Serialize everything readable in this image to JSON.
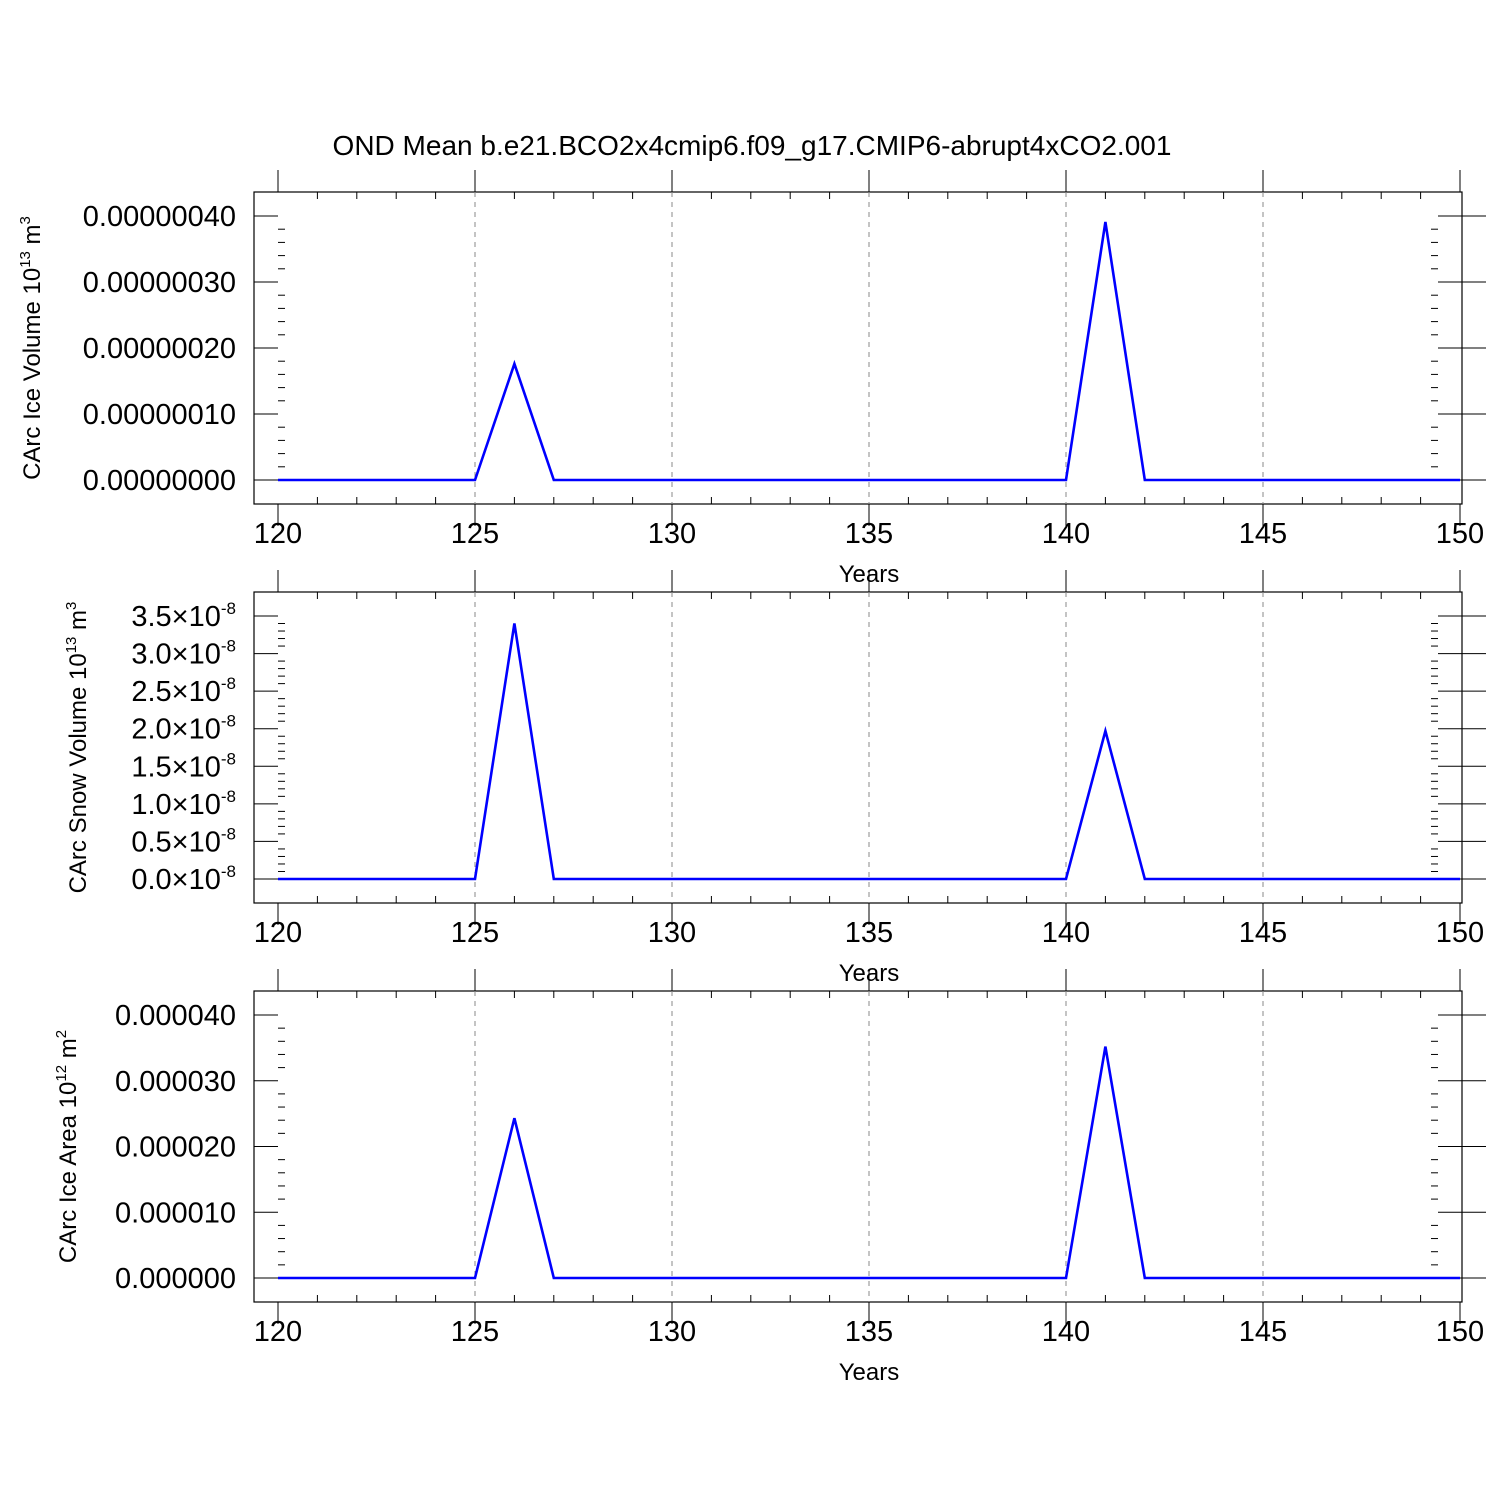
{
  "figure": {
    "title": "OND Mean b.e21.BCO2x4cmip6.f09_g17.CMIP6-abrupt4xCO2.001"
  },
  "colors": {
    "line": "#0000ff",
    "axes": "#000000",
    "grid": "#888888",
    "background": "#ffffff"
  },
  "chart_data": [
    {
      "type": "line",
      "title": "",
      "xlabel": "Years",
      "ylabel": "CArc Ice Volume 10",
      "ylabel_exp": "13",
      "ylabel_unit": " m",
      "ylabel_unit_exp": "3",
      "xlim": [
        120,
        150
      ],
      "ylim": [
        0,
        4e-07
      ],
      "xticks": [
        120,
        125,
        130,
        135,
        140,
        145,
        150
      ],
      "xtick_labels": [
        "120",
        "125",
        "130",
        "135",
        "140",
        "145",
        "150"
      ],
      "yticks": [
        0,
        1e-07,
        2e-07,
        3e-07,
        4e-07
      ],
      "ytick_labels": [
        "0.00000000",
        "0.00000010",
        "0.00000020",
        "0.00000030",
        "0.00000040"
      ],
      "grid": "vertical dashed at major x ticks",
      "series": [
        {
          "x": [
            120,
            121,
            122,
            123,
            124,
            125,
            126,
            127,
            128,
            129,
            130,
            131,
            132,
            133,
            134,
            135,
            136,
            137,
            138,
            139,
            140,
            141,
            142,
            143,
            144,
            145,
            146,
            147,
            148,
            149,
            150
          ],
          "y": [
            0,
            0,
            0,
            0,
            0,
            0,
            1.76e-07,
            0,
            0,
            0,
            0,
            0,
            0,
            0,
            0,
            0,
            0,
            0,
            0,
            0,
            0,
            3.91e-07,
            0,
            0,
            0,
            0,
            0,
            0,
            0,
            0,
            0
          ]
        }
      ]
    },
    {
      "type": "line",
      "title": "",
      "xlabel": "Years",
      "ylabel": "CArc Snow Volume 10",
      "ylabel_exp": "13",
      "ylabel_unit": " m",
      "ylabel_unit_exp": "3",
      "xlim": [
        120,
        150
      ],
      "ylim": [
        0,
        3.5e-08
      ],
      "xticks": [
        120,
        125,
        130,
        135,
        140,
        145,
        150
      ],
      "xtick_labels": [
        "120",
        "125",
        "130",
        "135",
        "140",
        "145",
        "150"
      ],
      "yticks": [
        0,
        5e-09,
        1e-08,
        1.5e-08,
        2e-08,
        2.5e-08,
        3e-08,
        3.5e-08
      ],
      "ytick_labels": [
        "0.0",
        "0.5",
        "1.0",
        "1.5",
        "2.0",
        "2.5",
        "3.0",
        "3.5"
      ],
      "ytick_multiplier": "×10",
      "ytick_exponent": "-8",
      "grid": "vertical dashed at major x ticks",
      "series": [
        {
          "x": [
            120,
            121,
            122,
            123,
            124,
            125,
            126,
            127,
            128,
            129,
            130,
            131,
            132,
            133,
            134,
            135,
            136,
            137,
            138,
            139,
            140,
            141,
            142,
            143,
            144,
            145,
            146,
            147,
            148,
            149,
            150
          ],
          "y": [
            0,
            0,
            0,
            0,
            0,
            0,
            3.4e-08,
            0,
            0,
            0,
            0,
            0,
            0,
            0,
            0,
            0,
            0,
            0,
            0,
            0,
            0,
            1.97e-08,
            0,
            0,
            0,
            0,
            0,
            0,
            0,
            0,
            0
          ]
        }
      ]
    },
    {
      "type": "line",
      "title": "",
      "xlabel": "Years",
      "ylabel": "CArc Ice Area 10",
      "ylabel_exp": "12",
      "ylabel_unit": " m",
      "ylabel_unit_exp": "2",
      "xlim": [
        120,
        150
      ],
      "ylim": [
        0,
        4e-05
      ],
      "xticks": [
        120,
        125,
        130,
        135,
        140,
        145,
        150
      ],
      "xtick_labels": [
        "120",
        "125",
        "130",
        "135",
        "140",
        "145",
        "150"
      ],
      "yticks": [
        0,
        1e-05,
        2e-05,
        3e-05,
        4e-05
      ],
      "ytick_labels": [
        "0.000000",
        "0.000010",
        "0.000020",
        "0.000030",
        "0.000040"
      ],
      "grid": "vertical dashed at major x ticks",
      "series": [
        {
          "x": [
            120,
            121,
            122,
            123,
            124,
            125,
            126,
            127,
            128,
            129,
            130,
            131,
            132,
            133,
            134,
            135,
            136,
            137,
            138,
            139,
            140,
            141,
            142,
            143,
            144,
            145,
            146,
            147,
            148,
            149,
            150
          ],
          "y": [
            0,
            0,
            0,
            0,
            0,
            0,
            2.43e-05,
            0,
            0,
            0,
            0,
            0,
            0,
            0,
            0,
            0,
            0,
            0,
            0,
            0,
            0,
            3.52e-05,
            0,
            0,
            0,
            0,
            0,
            0,
            0,
            0,
            0
          ]
        }
      ]
    }
  ]
}
